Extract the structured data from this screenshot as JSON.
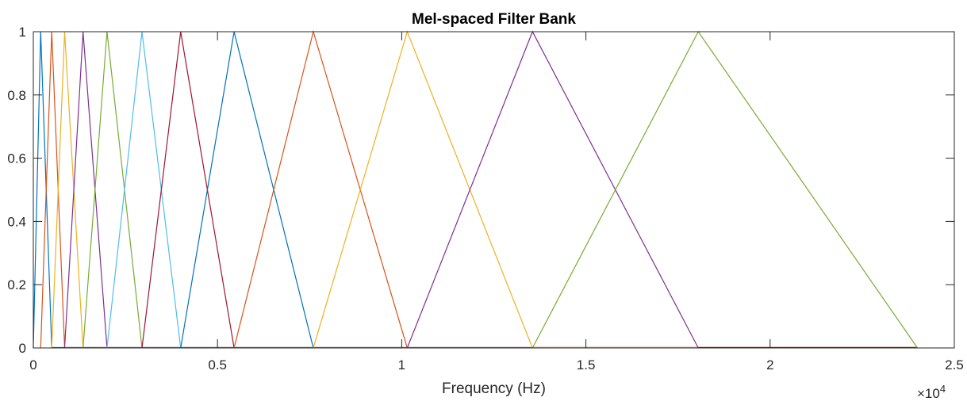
{
  "chart_data": {
    "type": "line",
    "title": "Mel-spaced Filter Bank",
    "xlabel": "Frequency (Hz)",
    "ylabel": "",
    "x_exponent_prefix": "×10",
    "x_exponent_power": "4",
    "xlim": [
      0,
      25000
    ],
    "ylim": [
      0,
      1
    ],
    "x_scale": 10000,
    "xticks": [
      0,
      5000,
      10000,
      15000,
      20000,
      25000
    ],
    "xtick_labels": [
      "0",
      "0.5",
      "1",
      "1.5",
      "2",
      "2.5"
    ],
    "yticks": [
      0,
      0.2,
      0.4,
      0.6,
      0.8,
      1
    ],
    "ytick_labels": [
      "0",
      "0.2",
      "0.4",
      "0.6",
      "0.8",
      "1"
    ],
    "grid": false,
    "box": true,
    "center_frequencies": [
      0,
      200,
      500,
      850,
      1350,
      2000,
      2950,
      4000,
      5450,
      7600,
      10150,
      13550,
      18050,
      24000
    ],
    "series": [
      {
        "x": [
          0,
          200,
          500
        ],
        "y": [
          0,
          1,
          0
        ],
        "color": "#0072BD"
      },
      {
        "x": [
          200,
          500,
          850
        ],
        "y": [
          0,
          1,
          0
        ],
        "color": "#D95319"
      },
      {
        "x": [
          500,
          850,
          1350
        ],
        "y": [
          0,
          1,
          0
        ],
        "color": "#EDB120"
      },
      {
        "x": [
          850,
          1350,
          2000
        ],
        "y": [
          0,
          1,
          0
        ],
        "color": "#7E2F8E"
      },
      {
        "x": [
          1350,
          2000,
          2950
        ],
        "y": [
          0,
          1,
          0
        ],
        "color": "#77AC30"
      },
      {
        "x": [
          2000,
          2950,
          4000
        ],
        "y": [
          0,
          1,
          0
        ],
        "color": "#4DBEEE"
      },
      {
        "x": [
          2950,
          4000,
          5450
        ],
        "y": [
          0,
          1,
          0
        ],
        "color": "#A2142F"
      },
      {
        "x": [
          4000,
          5450,
          7600
        ],
        "y": [
          0,
          1,
          0
        ],
        "color": "#0072BD"
      },
      {
        "x": [
          5450,
          7600,
          10150
        ],
        "y": [
          0,
          1,
          0
        ],
        "color": "#D95319"
      },
      {
        "x": [
          7600,
          10150,
          13550
        ],
        "y": [
          0,
          1,
          0
        ],
        "color": "#EDB120"
      },
      {
        "x": [
          10150,
          13550,
          18050
        ],
        "y": [
          0,
          1,
          0
        ],
        "color": "#7E2F8E"
      },
      {
        "x": [
          13550,
          18050,
          24000
        ],
        "y": [
          0,
          1,
          0
        ],
        "color": "#77AC30"
      }
    ],
    "zero_segments": [
      {
        "x": [
          500,
          24000
        ],
        "color": "#0072BD"
      },
      {
        "x": [
          850,
          24000
        ],
        "color": "#D95319"
      },
      {
        "x": [
          13550,
          24000
        ],
        "color": "#EDB120"
      },
      {
        "x": [
          18050,
          24000
        ],
        "color": "#A2142F"
      }
    ],
    "axis_color": "#262626"
  }
}
